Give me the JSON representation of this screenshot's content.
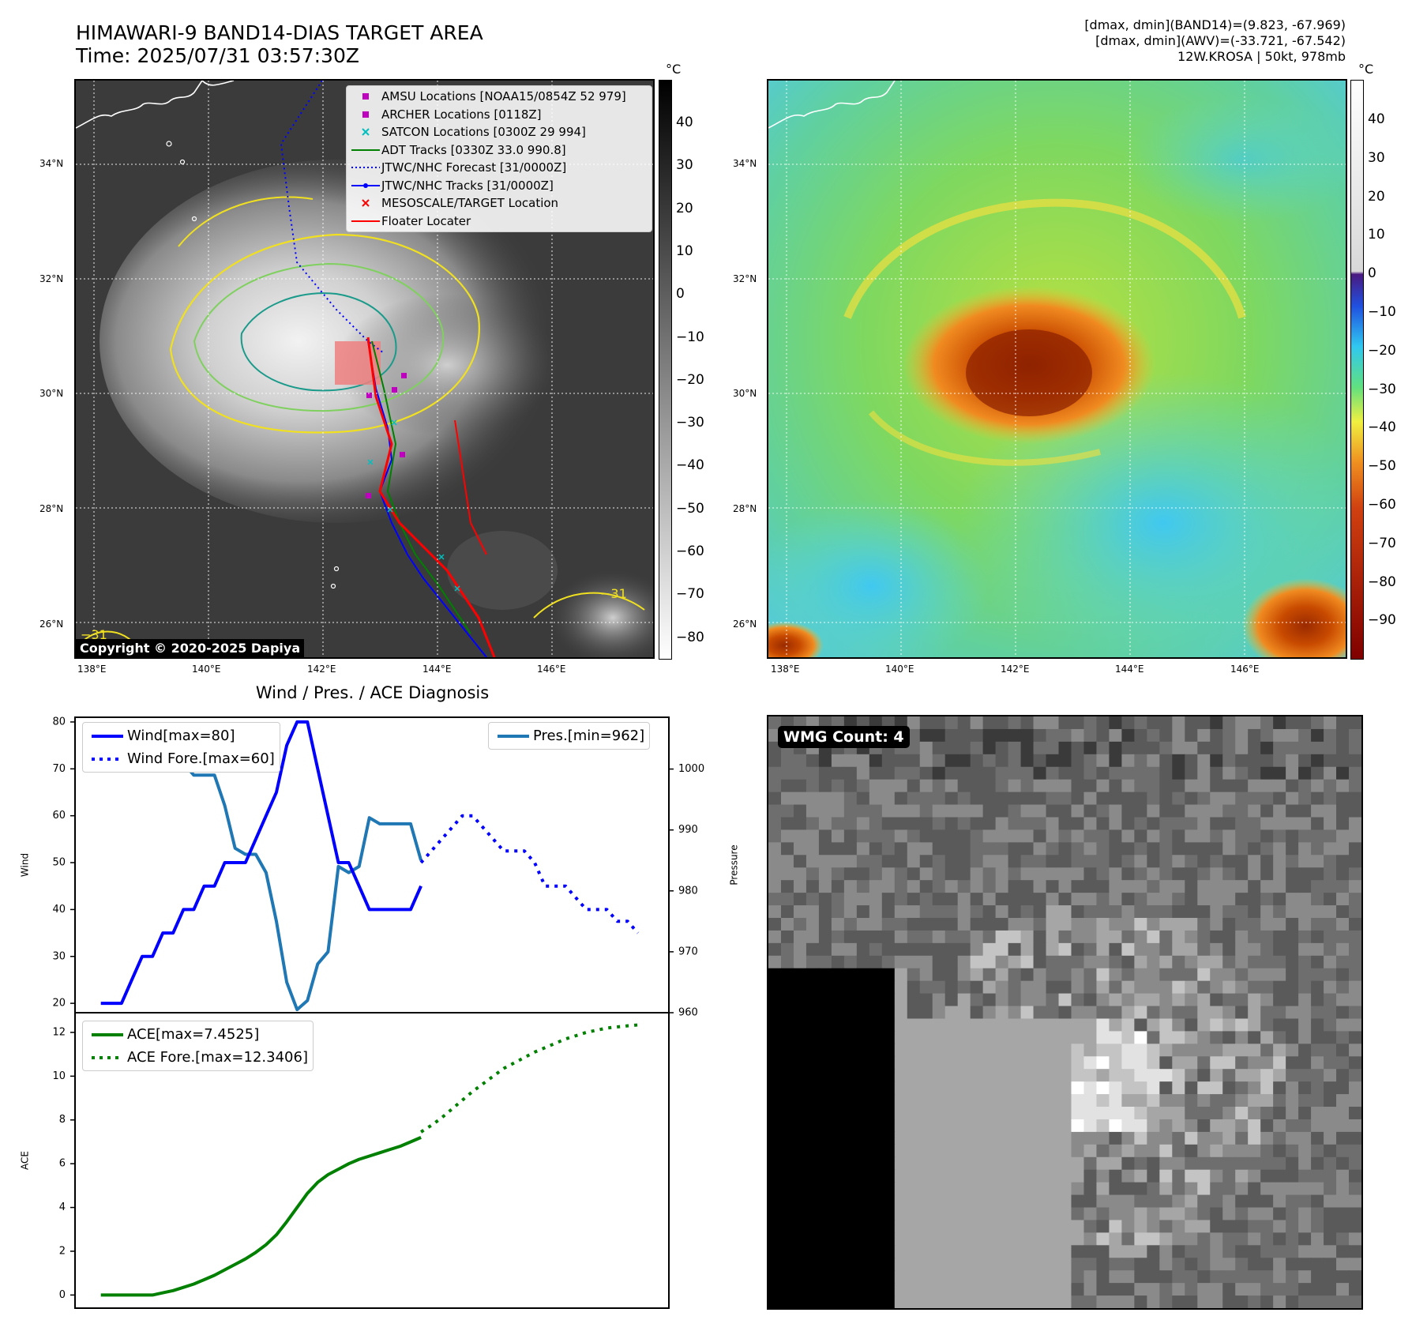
{
  "header": {
    "title_line1": "HIMAWARI-9 BAND14-DIAS TARGET AREA",
    "title_line2": "Time: 2025/07/31 03:57:30Z",
    "info_line1": "[dmax, dmin](BAND14)=(9.823, -67.969)",
    "info_line2": "[dmax, dmin](AWV)=(-33.721, -67.542)",
    "info_line3": "12W.KROSA | 50kt, 978mb"
  },
  "map_axes": {
    "lat_labels": [
      "34°N",
      "32°N",
      "30°N",
      "28°N",
      "26°N"
    ],
    "lon_labels": [
      "138°E",
      "140°E",
      "142°E",
      "144°E",
      "146°E"
    ],
    "contour_label": "−31"
  },
  "left_colorbar": {
    "unit": "°C",
    "ticks": [
      "40",
      "30",
      "20",
      "10",
      "0",
      "−10",
      "−20",
      "−30",
      "−40",
      "−50",
      "−60",
      "−70",
      "−80"
    ]
  },
  "right_colorbar": {
    "unit": "°C",
    "ticks": [
      "40",
      "30",
      "20",
      "10",
      "0",
      "−10",
      "−20",
      "−30",
      "−40",
      "−50",
      "−60",
      "−70",
      "−80",
      "−90"
    ]
  },
  "map_legend": [
    {
      "label": "AMSU Locations [NOAA15/0854Z 52 979]",
      "symbol": "square",
      "color": "#bf00bf"
    },
    {
      "label": "ARCHER Locations [0118Z]",
      "symbol": "square",
      "color": "#bf00bf"
    },
    {
      "label": "SATCON Locations [0300Z 29 994]",
      "symbol": "x",
      "color": "#00bfbf"
    },
    {
      "label": "ADT Tracks [0330Z 33.0 990.8]",
      "symbol": "line",
      "color": "#008000"
    },
    {
      "label": "JTWC/NHC Forecast [31/0000Z]",
      "symbol": "dotted",
      "color": "#0000ff"
    },
    {
      "label": "JTWC/NHC Tracks [31/0000Z]",
      "symbol": "line-dot",
      "color": "#0000ff"
    },
    {
      "label": "MESOSCALE/TARGET Location",
      "symbol": "x",
      "color": "#ff0000"
    },
    {
      "label": "Floater Locater",
      "symbol": "line",
      "color": "#ff0000"
    }
  ],
  "copyright": "Copyright © 2020-2025 Dapiya",
  "wmg_label": "WMG Count: 4",
  "chart_data": [
    {
      "type": "line",
      "title": "Wind / Pres. / ACE Diagnosis",
      "ylabel": "Wind",
      "ylabel_right": "Pressure",
      "x": [
        0,
        1,
        2,
        3,
        4,
        5,
        6,
        7,
        8,
        9,
        10,
        11,
        12,
        13,
        14,
        15,
        16,
        17,
        18,
        19,
        20,
        21,
        22,
        23,
        24,
        25,
        26,
        27,
        28,
        29,
        30,
        31,
        32,
        33,
        34,
        35,
        36,
        37,
        38,
        39,
        40,
        41,
        42,
        43,
        44,
        45,
        46,
        47,
        48,
        49,
        50,
        51,
        52
      ],
      "ylim": [
        18,
        81
      ],
      "ylim_right": [
        960,
        1008.5
      ],
      "xlim": [
        -2.5,
        55
      ],
      "left_ticks": [
        20,
        30,
        40,
        50,
        60,
        70,
        80
      ],
      "right_ticks": [
        960,
        970,
        980,
        990,
        1000
      ],
      "series": [
        {
          "name": "Wind[max=80]",
          "axis": "left",
          "style": "solid",
          "color": "#0000ff",
          "x": [
            0,
            1,
            2,
            3,
            4,
            5,
            6,
            7,
            8,
            9,
            10,
            11,
            12,
            13,
            14,
            15,
            16,
            17,
            18,
            19,
            20,
            21,
            22,
            23,
            24,
            25,
            26,
            27,
            28,
            29,
            30,
            31
          ],
          "values": [
            20,
            20,
            20,
            25,
            30,
            30,
            35,
            35,
            40,
            40,
            45,
            45,
            50,
            50,
            50,
            55,
            60,
            65,
            75,
            80,
            80,
            70,
            60,
            50,
            50,
            45,
            40,
            40,
            40,
            40,
            40,
            45
          ]
        },
        {
          "name": "Wind Fore.[max=60]",
          "axis": "left",
          "style": "dotted",
          "color": "#0000ff",
          "x": [
            31,
            32,
            33,
            34,
            35,
            36,
            37,
            38,
            39,
            40,
            41,
            42,
            43,
            44,
            45,
            46,
            47,
            48,
            49,
            50,
            51,
            52
          ],
          "values": [
            50,
            52.5,
            55,
            57.5,
            60,
            60,
            57.5,
            55,
            52.5,
            52.5,
            52.5,
            50,
            45,
            45,
            45,
            42.5,
            40,
            40,
            40,
            37.5,
            37.5,
            35
          ]
        },
        {
          "name": "Pres.[min=962]",
          "axis": "right",
          "style": "solid",
          "color": "#1f77b4",
          "x": [
            0,
            1,
            2,
            3,
            4,
            5,
            6,
            7,
            8,
            9,
            10,
            11,
            12,
            13,
            14,
            15,
            16,
            17,
            18,
            19,
            20,
            21,
            22,
            23,
            24,
            25,
            26,
            27,
            28,
            29,
            30,
            31
          ],
          "values": [
            1007,
            1007,
            1007,
            1005,
            1005,
            1004,
            1004,
            1001,
            1001,
            999,
            999,
            999,
            994,
            987,
            986,
            986,
            983,
            975,
            965,
            960.5,
            962,
            968,
            970,
            984,
            983,
            984,
            992,
            991,
            991,
            991,
            991,
            985
          ]
        }
      ]
    },
    {
      "type": "line",
      "ylabel": "ACE",
      "x": [
        0,
        1,
        2,
        3,
        4,
        5,
        6,
        7,
        8,
        9,
        10,
        11,
        12,
        13,
        14,
        15,
        16,
        17,
        18,
        19,
        20,
        21,
        22,
        23,
        24,
        25,
        26,
        27,
        28,
        29,
        30,
        31,
        32,
        33,
        34,
        35,
        36,
        37,
        38,
        39,
        40,
        41,
        42,
        43,
        44,
        45,
        46,
        47,
        48,
        49,
        50,
        51,
        52
      ],
      "ylim": [
        -0.6,
        12.9
      ],
      "xlim": [
        -2.5,
        55
      ],
      "left_ticks": [
        0,
        2,
        4,
        6,
        8,
        10,
        12
      ],
      "series": [
        {
          "name": "ACE[max=7.4525]",
          "style": "solid",
          "color": "#008000",
          "x": [
            0,
            1,
            2,
            3,
            4,
            5,
            6,
            7,
            8,
            9,
            10,
            11,
            12,
            13,
            14,
            15,
            16,
            17,
            18,
            19,
            20,
            21,
            22,
            23,
            24,
            25,
            26,
            27,
            28,
            29,
            30,
            31
          ],
          "values": [
            0,
            0,
            0,
            0,
            0,
            0,
            0.1,
            0.2,
            0.35,
            0.5,
            0.7,
            0.9,
            1.15,
            1.4,
            1.65,
            1.95,
            2.3,
            2.75,
            3.35,
            4.0,
            4.65,
            5.15,
            5.5,
            5.75,
            6.0,
            6.2,
            6.35,
            6.5,
            6.65,
            6.8,
            7.0,
            7.2
          ]
        },
        {
          "name": "ACE Fore.[max=12.3406]",
          "style": "dotted",
          "color": "#008000",
          "x": [
            31,
            32,
            33,
            34,
            35,
            36,
            37,
            38,
            39,
            40,
            41,
            42,
            43,
            44,
            45,
            46,
            47,
            48,
            49,
            50,
            51,
            52
          ],
          "values": [
            7.45,
            7.75,
            8.1,
            8.5,
            8.9,
            9.3,
            9.65,
            10.0,
            10.35,
            10.6,
            10.85,
            11.1,
            11.3,
            11.5,
            11.7,
            11.85,
            12.0,
            12.1,
            12.2,
            12.25,
            12.3,
            12.34
          ]
        }
      ]
    }
  ]
}
